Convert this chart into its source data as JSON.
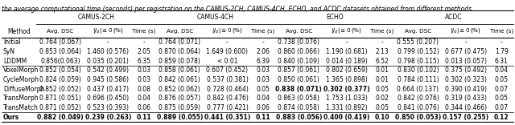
{
  "caption": "the average computational time (seconds) per registration on the CAMUS-2CH, CAMUS-4CH, ECHO, and ACDC datasets obtained from different methods.",
  "dataset_headers": [
    "CAMUS-2CH",
    "CAMUS-4CH",
    "ECHO",
    "ACDC"
  ],
  "subheader_labels": [
    "Avg. DSC",
    "|J_d| ≤ 0 (%)",
    "Time (s)"
  ],
  "rows": [
    [
      "Initial",
      "0.764 (0.067)",
      "-",
      "-",
      "0.764 (0.071)",
      "-",
      "-",
      "0.738 (0.076)",
      "-",
      "-",
      "0.555 (0.207)",
      "-",
      "-"
    ],
    [
      "SyN",
      "0.853 (0.064)",
      "1.460 (0.576)",
      "2.05",
      "0.870 (0.064)",
      "1.649 (0.600)",
      "2.06",
      "0.860 (0.066)",
      "1.190 (0.681)",
      "2.13",
      "0.799 (0.152)",
      "0.677 (0.475)",
      "1.79"
    ],
    [
      "LDDMM",
      "0.856(0.063)",
      "0.035 (0.201)",
      "6.35",
      "0.859 (0.078)",
      "< 0.01",
      "6.39",
      "0.840 (0.109)",
      "0.014 (0.189)",
      "6.52",
      "0.798 (0.115)",
      "0.013 (0.057)",
      "6.31"
    ],
    [
      "VoxelMorph",
      "0.852 (0.054)",
      "0.542 (0.499)",
      "0.03",
      "0.858 (0.061)",
      "0.607 (0.452)",
      "0.03",
      "0.857 (0.061)",
      "0.802 (0.659)",
      "0.01",
      "0.830 (0.102)",
      "0.375 (0.492)",
      "0.04"
    ],
    [
      "CycleMorph",
      "0.824 (0.059)",
      "0.945 (0.586)",
      "0.03",
      "0.842 (0.061)",
      "0.537 (0.381)",
      "0.03",
      "0.850 (0.061)",
      "1.365 (0.898)",
      "0.01",
      "0.784 (0.111)",
      "0.302 (0.323)",
      "0.05"
    ],
    [
      "DiffuseMorph",
      "0.852 (0.052)",
      "0.437 (0.417)",
      "0.08",
      "0.852 (0.062)",
      "0.728 (0.464)",
      "0.05",
      "0.838 (0.071)",
      "0.302 (0.377)",
      "0.05",
      "0.664 (0.137)",
      "0.390 (0.419)",
      "0.07"
    ],
    [
      "TransMorph",
      "0.871 (0.051)",
      "0.696 (0.450)",
      "0.04",
      "0.876 (0.057)",
      "0.842 (0.476)",
      "0.04",
      "0.863 (0.058)",
      "1.753 (1.033)",
      "0.02",
      "0.842 (0.076)",
      "0.319 (0.433)",
      "0.05"
    ],
    [
      "TransMatch",
      "0.871 (0.052)",
      "0.523 (0.393)",
      "0.06",
      "0.875 (0.059)",
      "0.777 (0.421)",
      "0.06",
      "0.874 (0.058)",
      "1.331 (0.892)",
      "0.05",
      "0.841 (0.076)",
      "0.344 (0.466)",
      "0.07"
    ],
    [
      "Ours",
      "0.882 (0.049)",
      "0.239 (0.263)",
      "0.11",
      "0.889 (0.055)",
      "0.441 (0.351)",
      "0.11",
      "0.883 (0.056)",
      "0.400 (0.419)",
      "0.10",
      "0.850 (0.053)",
      "0.157 (0.255)",
      "0.12"
    ]
  ],
  "bold_row_indices": [
    8
  ],
  "special_bold": {
    "5": [
      7,
      8
    ],
    "8": [
      1,
      2,
      4,
      5,
      7,
      10
    ]
  },
  "bg_color": "#ffffff",
  "font_size": 5.5,
  "caption_font_size": 5.5
}
